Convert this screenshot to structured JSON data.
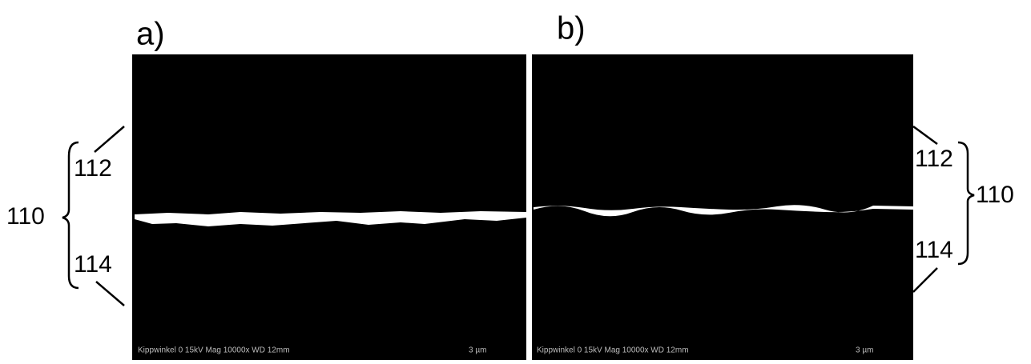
{
  "panels": [
    {
      "label": "a)",
      "footer": "Kippwinkel 0 15kV Mag 10000x WD 12mm",
      "scale": "3 µm"
    },
    {
      "label": "b)",
      "footer": "Kippwinkel 0 15kV Mag 10000x WD 12mm",
      "scale": "3 µm"
    }
  ],
  "callouts": {
    "left": {
      "group": "110",
      "top": "112",
      "bottom": "114"
    },
    "right": {
      "group": "110",
      "top": "112",
      "bottom": "114"
    }
  }
}
